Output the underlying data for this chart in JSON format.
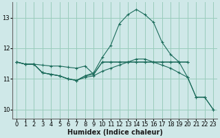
{
  "xlabel": "Humidex (Indice chaleur)",
  "bg_color": "#cfe8e8",
  "grid_color": "#99ccbb",
  "line_color": "#1a6b5a",
  "xlim": [
    -0.5,
    23.5
  ],
  "ylim": [
    9.7,
    13.5
  ],
  "yticks": [
    10,
    11,
    12,
    13
  ],
  "xticks": [
    0,
    1,
    2,
    3,
    4,
    5,
    6,
    7,
    8,
    9,
    10,
    11,
    12,
    13,
    14,
    15,
    16,
    17,
    18,
    19,
    20,
    21,
    22,
    23
  ],
  "line1_x": [
    0,
    1,
    2,
    3,
    4,
    5,
    6,
    7,
    8,
    9,
    10,
    11,
    12,
    13,
    14,
    15,
    16,
    17,
    18,
    19,
    20
  ],
  "line1_y": [
    11.55,
    11.48,
    11.48,
    11.45,
    11.42,
    11.42,
    11.38,
    11.35,
    11.42,
    11.15,
    11.55,
    11.55,
    11.55,
    11.55,
    11.55,
    11.55,
    11.55,
    11.55,
    11.55,
    11.55,
    11.55
  ],
  "line2_x": [
    0,
    1,
    2,
    3,
    4,
    5,
    6,
    7,
    8,
    9,
    10,
    11,
    12,
    13,
    14,
    15,
    16,
    17,
    18,
    19,
    20
  ],
  "line2_y": [
    11.55,
    11.48,
    11.48,
    11.2,
    11.15,
    11.1,
    11.0,
    10.95,
    11.1,
    11.15,
    11.55,
    11.55,
    11.55,
    11.55,
    11.55,
    11.55,
    11.55,
    11.55,
    11.55,
    11.55,
    11.55
  ],
  "line3_x": [
    0,
    1,
    2,
    3,
    4,
    5,
    6,
    7,
    8,
    9,
    10,
    11,
    12,
    13,
    14,
    15,
    16,
    17,
    18,
    19,
    20,
    21,
    22,
    23
  ],
  "line3_y": [
    11.55,
    11.48,
    11.48,
    11.2,
    11.15,
    11.1,
    11.0,
    10.95,
    11.1,
    11.2,
    11.7,
    12.1,
    12.8,
    13.1,
    13.27,
    13.1,
    12.85,
    12.2,
    11.8,
    11.55,
    11.05,
    10.4,
    10.4,
    10.0
  ],
  "line4_x": [
    0,
    1,
    2,
    3,
    4,
    5,
    6,
    7,
    8,
    9,
    10,
    11,
    12,
    13,
    14,
    15,
    16,
    17,
    18,
    19,
    20,
    21,
    22,
    23
  ],
  "line4_y": [
    11.55,
    11.48,
    11.48,
    11.2,
    11.15,
    11.1,
    11.0,
    10.95,
    11.05,
    11.1,
    11.25,
    11.35,
    11.45,
    11.55,
    11.65,
    11.65,
    11.55,
    11.45,
    11.35,
    11.2,
    11.05,
    10.4,
    10.4,
    10.0
  ]
}
